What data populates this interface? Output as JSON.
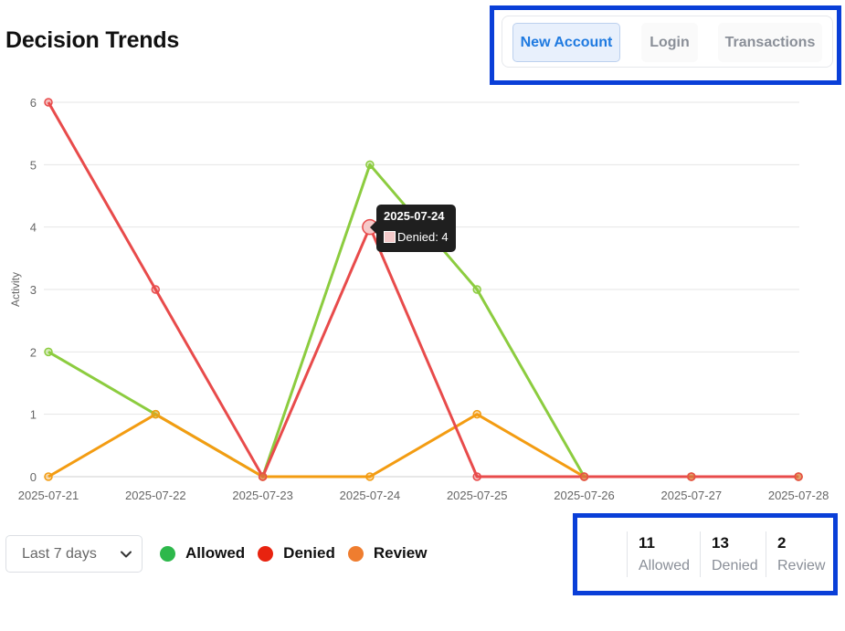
{
  "page": {
    "title": "Decision Trends"
  },
  "tabs": [
    {
      "label": "New Account",
      "active": true
    },
    {
      "label": "Login",
      "active": false
    },
    {
      "label": "Transactions",
      "active": false
    }
  ],
  "tooltip": {
    "date": "2025-07-24",
    "text": "Denied: 4"
  },
  "controls": {
    "range_label": "Last 7 days",
    "chevron_icon": "chevron-down-icon"
  },
  "legend": [
    {
      "name": "Allowed",
      "color": "#2db84b"
    },
    {
      "name": "Denied",
      "color": "#e8230f"
    },
    {
      "name": "Review",
      "color": "#ef7d2f"
    }
  ],
  "stats": {
    "allowed": {
      "value": "11",
      "label": "Allowed"
    },
    "denied": {
      "value": "13",
      "label": "Denied"
    },
    "review": {
      "value": "2",
      "label": "Review"
    }
  },
  "chart_data": {
    "type": "line",
    "categories": [
      "2025-07-21",
      "2025-07-22",
      "2025-07-23",
      "2025-07-24",
      "2025-07-25",
      "2025-07-26",
      "2025-07-27",
      "2025-07-28"
    ],
    "ylabel": "Activity",
    "xlabel": "",
    "ylim": [
      0,
      6
    ],
    "yticks": [
      0,
      1,
      2,
      3,
      4,
      5,
      6
    ],
    "grid": true,
    "series": [
      {
        "name": "Allowed",
        "color": "#8ccc3f",
        "values": [
          2,
          1,
          0,
          5,
          3,
          0,
          0,
          0
        ]
      },
      {
        "name": "Denied",
        "color": "#e84b4b",
        "values": [
          6,
          3,
          0,
          4,
          0,
          0,
          0,
          0
        ]
      },
      {
        "name": "Review",
        "color": "#f39c12",
        "values": [
          0,
          1,
          0,
          0,
          1,
          0,
          0,
          0
        ]
      }
    ],
    "highlight": {
      "series": "Denied",
      "index": 3
    }
  }
}
